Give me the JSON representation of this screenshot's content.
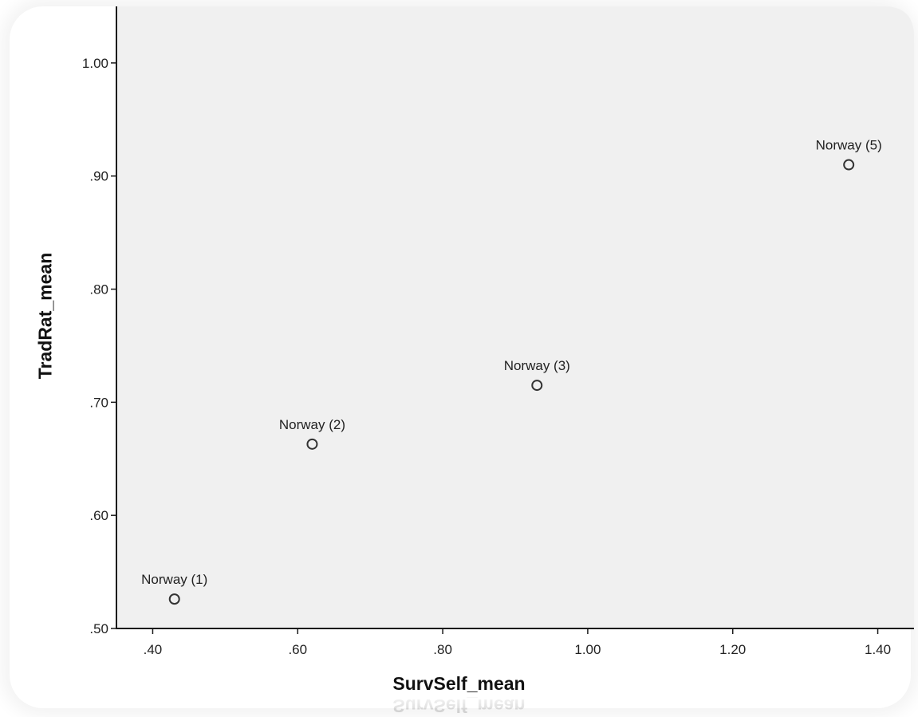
{
  "chart_data": {
    "type": "scatter",
    "title": "",
    "xlabel": "SurvSelf_mean",
    "ylabel": "TradRat_mean",
    "xlim": [
      0.35,
      1.45
    ],
    "ylim": [
      0.5,
      1.05
    ],
    "xticks": [
      0.4,
      0.6,
      0.8,
      1.0,
      1.2,
      1.4
    ],
    "xtick_labels": [
      ".40",
      ".60",
      ".80",
      "1.00",
      "1.20",
      "1.40"
    ],
    "yticks": [
      0.5,
      0.6,
      0.7,
      0.8,
      0.9,
      1.0
    ],
    "ytick_labels": [
      ".50",
      ".60",
      ".70",
      ".80",
      ".90",
      "1.00"
    ],
    "grid": false,
    "legend": "none",
    "marker": "open-circle",
    "background_color": "#f0f0f0",
    "series": [
      {
        "points": [
          {
            "label": "Norway (1)",
            "x": 0.43,
            "y": 0.526
          },
          {
            "label": "Norway (2)",
            "x": 0.62,
            "y": 0.663
          },
          {
            "label": "Norway (3)",
            "x": 0.93,
            "y": 0.715
          },
          {
            "label": "Norway (5)",
            "x": 1.36,
            "y": 0.91
          }
        ]
      }
    ]
  }
}
